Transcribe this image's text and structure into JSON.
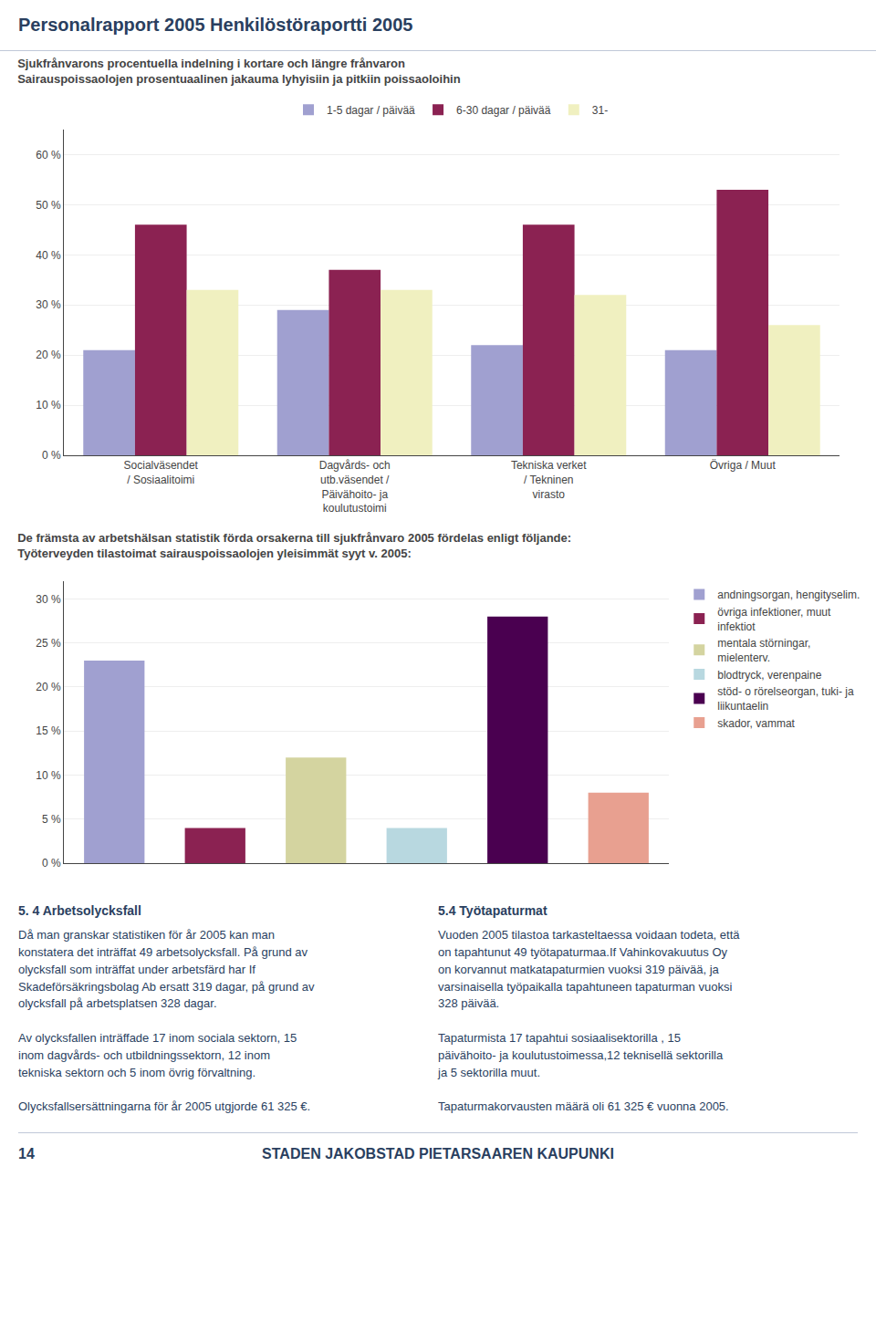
{
  "title": "Personalrapport 2005 Henkilöstöraportti 2005",
  "annotations": [
    "5. 4 Arbetsolycksfall",
    "5.4 Työtapaturmat",
    "Då man granskar statistiken för år 2005 kan man\nkonstatera det inträffat 49 arbetsolycksfall. På grund av\nolycksfall som inträffat under arbetsfärd har If\nSkadeförsäkringsbolag Ab ersatt 319 dagar, på grund av\nolycksfall på arbetsplatsen 328 dagar.\n\nAv olycksfallen inträffade 17 inom sociala sektorn, 15\ninom dagvårds- och utbildningssektorn, 12 inom\ntekniska sektorn och 5 inom övrig förvaltning.\n\nOlycksfallsersättningarna för år 2005 utgjorde 61 325 €.",
    "Vuoden 2005 tilastoa tarkasteltaessa voidaan todeta, että\non tapahtunut 49 työtapaturmaa.If Vahinkovakuutus Oy\non korvannut matkatapaturmien vuoksi 319 päivää, ja\nvarsinaisella työpaikalla tapahtuneen tapaturman vuoksi\n328 päivää.\n\nTapaturmista 17 tapahtui sosiaalisektorilla , 15\npäivähoito- ja koulutustoimessa,12 teknisellä sektorilla\nja 5 sektorilla muut.\n\nTapaturmakorvausten määrä oli 61 325 € vuonna 2005.",
    "14",
    "STADEN JAKOBSTAD PIETARSAAREN KAUPUNKI"
  ],
  "chart_data": [
    {
      "type": "bar",
      "title": "Sjukfrånvarons procentuella indelning i kortare och längre frånvaron",
      "subtitle": "Sairauspoissaolojen prosentuaalinen jakauma lyhyisiin ja pitkiin poissaoloihin",
      "categories": [
        "Socialväsendet\n/ Sosiaalitoimi",
        "Dagvårds- och\nutb.väsendet /\nPäivähoito- ja\nkoulutustoimi",
        "Tekniska verket\n/ Tekninen\nvirasto",
        "Övriga / Muut"
      ],
      "series": [
        {
          "name": "1-5 dagar / päivää",
          "color": "#a0a0d0",
          "values": [
            21,
            29,
            22,
            21
          ]
        },
        {
          "name": "6-30 dagar / päivää",
          "color": "#8b2252",
          "values": [
            46,
            37,
            46,
            53
          ]
        },
        {
          "name": "31-",
          "color": "#f0f0c0",
          "values": [
            33,
            33,
            32,
            26
          ]
        }
      ],
      "ylim": [
        0,
        65
      ],
      "yticks": [
        {
          "value": 0,
          "label": "0 %"
        },
        {
          "value": 10,
          "label": "10 %"
        },
        {
          "value": 20,
          "label": "20 %"
        },
        {
          "value": 30,
          "label": "30 %"
        },
        {
          "value": 40,
          "label": "40 %"
        },
        {
          "value": 50,
          "label": "50 %"
        },
        {
          "value": 60,
          "label": "60 %"
        }
      ],
      "grid": true,
      "legend": "top"
    },
    {
      "type": "bar",
      "title": "De främsta av arbetshälsan statistik förda orsakerna till sjukfrånvaro 2005 fördelas enligt följande:",
      "subtitle": "Työterveyden tilastoimat sairauspoissaolojen yleisimmät syyt v. 2005:",
      "categories": [
        "andningsorgan, hengityselim.",
        "övriga infektioner, muut\ninfektiot",
        "mentala störningar,\nmielenterv.",
        "blodtryck, verenpaine",
        "stöd- o rörelseorgan, tuki- ja\nliikuntaelin",
        "skador, vammat"
      ],
      "values": [
        23,
        4,
        12,
        4,
        28,
        8
      ],
      "colors": [
        "#a0a0d0",
        "#8b2252",
        "#d4d4a0",
        "#b8d8e0",
        "#4a0050",
        "#e8a090"
      ],
      "ylim": [
        0,
        32
      ],
      "yticks": [
        {
          "value": 0,
          "label": "0 %"
        },
        {
          "value": 5,
          "label": "5 %"
        },
        {
          "value": 10,
          "label": "10 %"
        },
        {
          "value": 15,
          "label": "15 %"
        },
        {
          "value": 20,
          "label": "20 %"
        },
        {
          "value": 25,
          "label": "25 %"
        },
        {
          "value": 30,
          "label": "30 %"
        }
      ],
      "grid": true,
      "legend": "right",
      "tick_labels": "y"
    }
  ]
}
